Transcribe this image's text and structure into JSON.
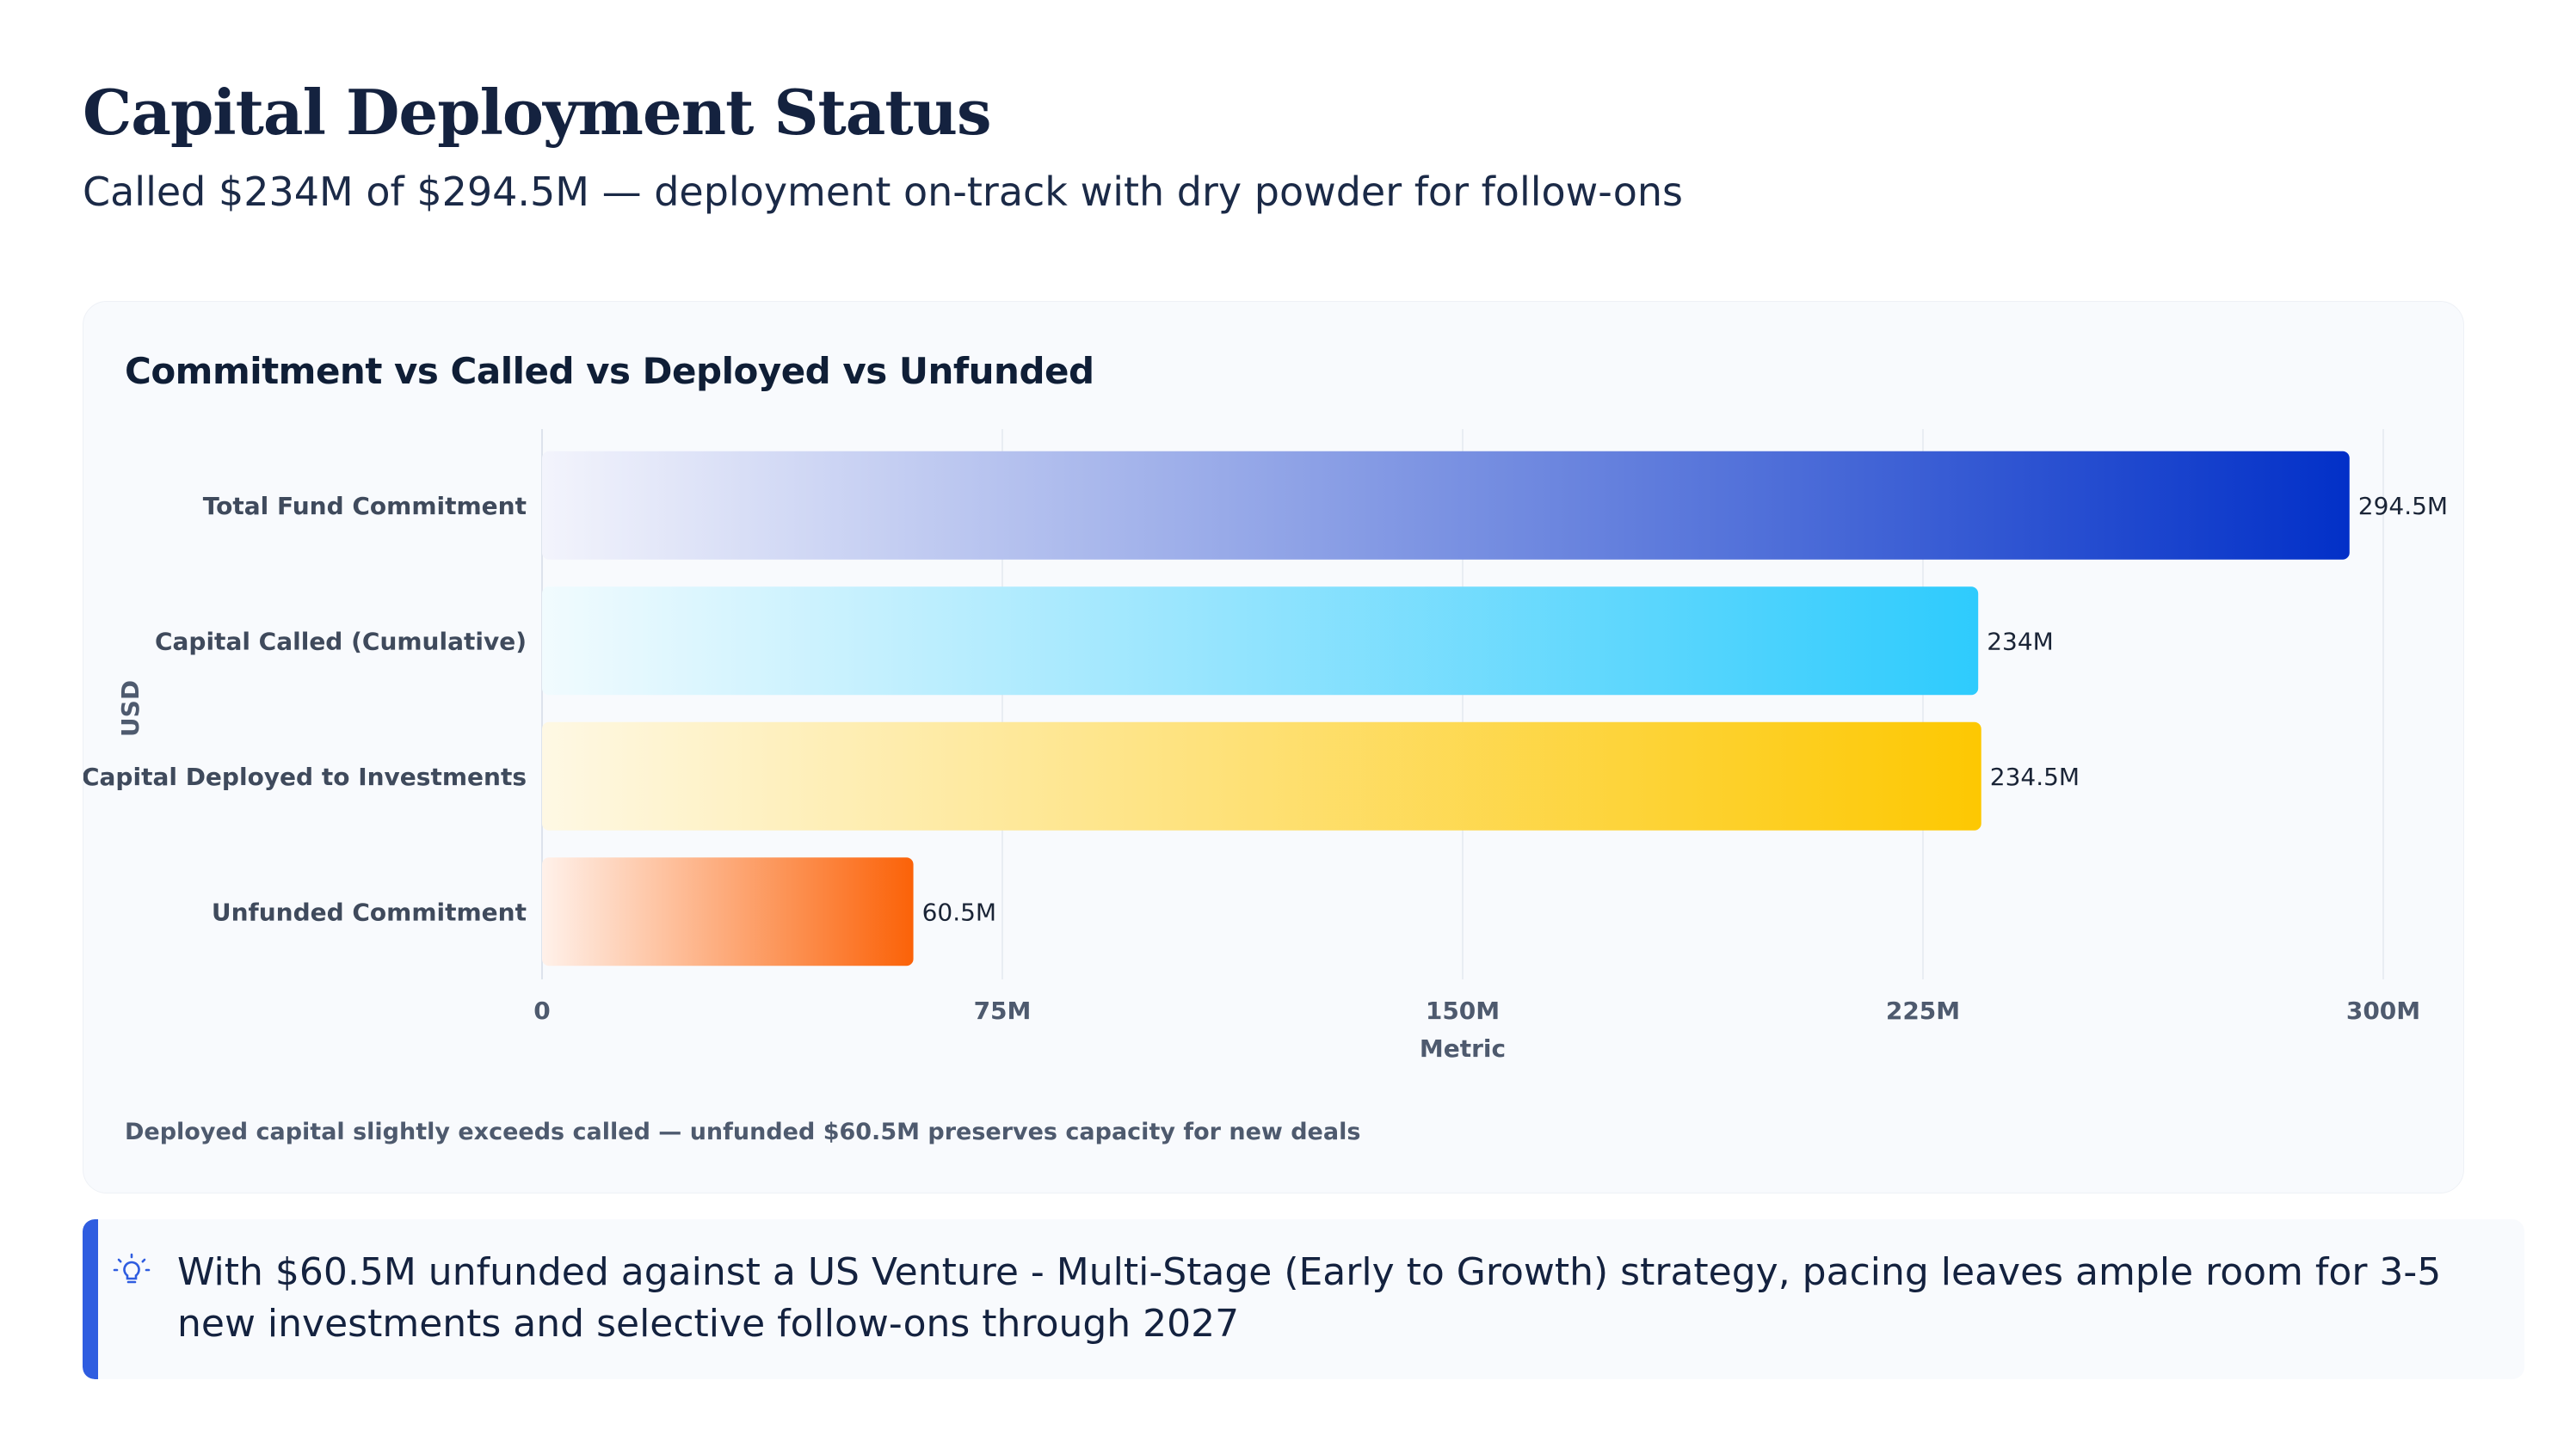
{
  "header": {
    "title": "Capital Deployment Status",
    "subtitle": "Called $234M of $294.5M — deployment on-track with dry powder for follow-ons"
  },
  "card": {
    "footnote": "Deployed capital slightly exceeds called — unfunded $60.5M preserves capacity for new deals"
  },
  "callout": {
    "icon": "lightbulb-icon",
    "text": "With $60.5M unfunded against a US Venture - Multi-Stage (Early to Growth) strategy, pacing leaves ample room for 3-5 new investments and selective follow-ons through 2027",
    "accent_color": "#2f5de0"
  },
  "chart_data": {
    "type": "bar",
    "orientation": "horizontal",
    "title": "Commitment vs Called vs Deployed vs Unfunded",
    "xlabel": "Metric",
    "ylabel": "USD",
    "categories": [
      "Total Fund Commitment",
      "Capital Called (Cumulative)",
      "Capital Deployed to Investments",
      "Unfunded Commitment"
    ],
    "values": [
      294.5,
      234,
      234.5,
      60.5
    ],
    "value_labels": [
      "294.5M",
      "234M",
      "234.5M",
      "60.5M"
    ],
    "unit": "M",
    "xlim": [
      0,
      300
    ],
    "ticks": [
      0,
      75,
      150,
      225,
      300
    ],
    "tick_labels": [
      "0",
      "75M",
      "150M",
      "225M",
      "300M"
    ],
    "grid": true,
    "colors": [
      {
        "from": "#f3f4fc",
        "to": "#0230c8"
      },
      {
        "from": "#f1fbfe",
        "to": "#2ecbfd"
      },
      {
        "from": "#fef8e4",
        "to": "#fdc802"
      },
      {
        "from": "#fff1ea",
        "to": "#fb6208"
      }
    ]
  }
}
